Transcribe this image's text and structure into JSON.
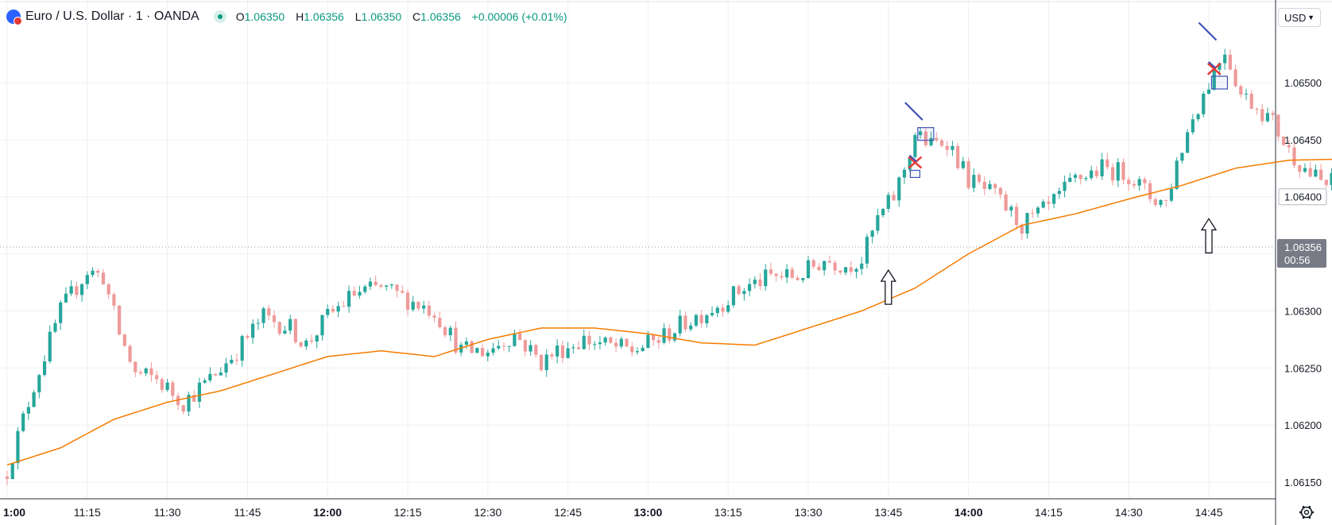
{
  "header": {
    "symbol": "Euro / U.S. Dollar · 1 · OANDA",
    "o_label": "O",
    "o_value": "1.06350",
    "h_label": "H",
    "h_value": "1.06356",
    "l_label": "L",
    "l_value": "1.06350",
    "c_label": "C",
    "c_value": "1.06356",
    "change": "+0.00006 (+0.01%)"
  },
  "currency_button": {
    "label": "USD",
    "icon": "chevron-down-icon"
  },
  "settings_icon": "gear-icon",
  "price_label": {
    "price": "1.06356",
    "countdown": "00:56"
  },
  "highlighted_price": "1.06400",
  "colors": {
    "up": "#26a69a",
    "down": "#ef9a9a",
    "ma": "#f57c00",
    "annotation": "#3f51b5",
    "cross": "#e53935"
  },
  "chart_data": {
    "type": "candlestick",
    "xlabel": "",
    "ylabel": "",
    "x_ticks": [
      "1:00",
      "11:15",
      "11:30",
      "11:45",
      "12:00",
      "12:15",
      "12:30",
      "12:45",
      "13:00",
      "13:15",
      "13:30",
      "13:45",
      "14:00",
      "14:15",
      "14:30",
      "14:45"
    ],
    "x_ticks_bold": [
      "12:00",
      "13:00",
      "14:00"
    ],
    "y_ticks": [
      "1.06150",
      "1.06200",
      "1.06250",
      "1.06300",
      "1.06350",
      "1.06400",
      "1.06450",
      "1.06500"
    ],
    "ylim": [
      1.0613,
      1.0654
    ],
    "close_series": [
      {
        "t": 0,
        "c": 1.0616
      },
      {
        "t": 5,
        "c": 1.06235
      },
      {
        "t": 10,
        "c": 1.063
      },
      {
        "t": 15,
        "c": 1.06335
      },
      {
        "t": 18,
        "c": 1.0633
      },
      {
        "t": 21,
        "c": 1.0628
      },
      {
        "t": 24,
        "c": 1.06245
      },
      {
        "t": 28,
        "c": 1.0624
      },
      {
        "t": 33,
        "c": 1.0622
      },
      {
        "t": 38,
        "c": 1.0624
      },
      {
        "t": 43,
        "c": 1.06265
      },
      {
        "t": 48,
        "c": 1.06295
      },
      {
        "t": 53,
        "c": 1.06285
      },
      {
        "t": 56,
        "c": 1.0627
      },
      {
        "t": 60,
        "c": 1.06295
      },
      {
        "t": 65,
        "c": 1.06315
      },
      {
        "t": 70,
        "c": 1.0632
      },
      {
        "t": 75,
        "c": 1.0631
      },
      {
        "t": 80,
        "c": 1.063
      },
      {
        "t": 85,
        "c": 1.06265
      },
      {
        "t": 90,
        "c": 1.06265
      },
      {
        "t": 95,
        "c": 1.0628
      },
      {
        "t": 100,
        "c": 1.06255
      },
      {
        "t": 103,
        "c": 1.06265
      },
      {
        "t": 108,
        "c": 1.06275
      },
      {
        "t": 112,
        "c": 1.0627
      },
      {
        "t": 117,
        "c": 1.06265
      },
      {
        "t": 122,
        "c": 1.06275
      },
      {
        "t": 127,
        "c": 1.0629
      },
      {
        "t": 133,
        "c": 1.06305
      },
      {
        "t": 138,
        "c": 1.0632
      },
      {
        "t": 143,
        "c": 1.0633
      },
      {
        "t": 148,
        "c": 1.0633
      },
      {
        "t": 153,
        "c": 1.06345
      },
      {
        "t": 157,
        "c": 1.0634
      },
      {
        "t": 160,
        "c": 1.06345
      },
      {
        "t": 163,
        "c": 1.0638
      },
      {
        "t": 166,
        "c": 1.064
      },
      {
        "t": 168,
        "c": 1.06425
      },
      {
        "t": 170,
        "c": 1.06455
      },
      {
        "t": 173,
        "c": 1.06445
      },
      {
        "t": 176,
        "c": 1.0645
      },
      {
        "t": 180,
        "c": 1.06415
      },
      {
        "t": 185,
        "c": 1.064
      },
      {
        "t": 190,
        "c": 1.06375
      },
      {
        "t": 195,
        "c": 1.0639
      },
      {
        "t": 200,
        "c": 1.06415
      },
      {
        "t": 205,
        "c": 1.06425
      },
      {
        "t": 210,
        "c": 1.0642
      },
      {
        "t": 214,
        "c": 1.064
      },
      {
        "t": 217,
        "c": 1.06395
      },
      {
        "t": 219,
        "c": 1.0643
      },
      {
        "t": 222,
        "c": 1.0647
      },
      {
        "t": 225,
        "c": 1.065
      },
      {
        "t": 228,
        "c": 1.0653
      },
      {
        "t": 231,
        "c": 1.0649
      },
      {
        "t": 234,
        "c": 1.0648
      },
      {
        "t": 237,
        "c": 1.06465
      },
      {
        "t": 240,
        "c": 1.0644
      },
      {
        "t": 244,
        "c": 1.0642
      },
      {
        "t": 247,
        "c": 1.0641
      },
      {
        "t": 250,
        "c": 1.0642
      },
      {
        "t": 252,
        "c": 1.064
      },
      {
        "t": 254,
        "c": 1.06356
      }
    ],
    "ma_series": [
      {
        "t": 0,
        "v": 1.06165
      },
      {
        "t": 10,
        "v": 1.0618
      },
      {
        "t": 20,
        "v": 1.06205
      },
      {
        "t": 30,
        "v": 1.0622
      },
      {
        "t": 40,
        "v": 1.0623
      },
      {
        "t": 50,
        "v": 1.06245
      },
      {
        "t": 60,
        "v": 1.0626
      },
      {
        "t": 70,
        "v": 1.06265
      },
      {
        "t": 80,
        "v": 1.0626
      },
      {
        "t": 90,
        "v": 1.06275
      },
      {
        "t": 100,
        "v": 1.06285
      },
      {
        "t": 110,
        "v": 1.06285
      },
      {
        "t": 120,
        "v": 1.0628
      },
      {
        "t": 130,
        "v": 1.06272
      },
      {
        "t": 140,
        "v": 1.0627
      },
      {
        "t": 150,
        "v": 1.06285
      },
      {
        "t": 160,
        "v": 1.063
      },
      {
        "t": 170,
        "v": 1.0632
      },
      {
        "t": 180,
        "v": 1.0635
      },
      {
        "t": 190,
        "v": 1.06375
      },
      {
        "t": 200,
        "v": 1.06385
      },
      {
        "t": 210,
        "v": 1.06398
      },
      {
        "t": 220,
        "v": 1.0641
      },
      {
        "t": 230,
        "v": 1.06425
      },
      {
        "t": 240,
        "v": 1.06432
      },
      {
        "t": 250,
        "v": 1.06433
      },
      {
        "t": 254,
        "v": 1.06433
      }
    ],
    "annotations": [
      {
        "type": "up-arrow",
        "t": 165,
        "price": 1.06335
      },
      {
        "type": "up-arrow",
        "t": 225,
        "price": 1.0638
      },
      {
        "type": "cross",
        "t": 170,
        "price": 1.0643
      },
      {
        "type": "cross",
        "t": 226,
        "price": 1.06512
      },
      {
        "type": "box",
        "t": 170,
        "price": 1.0642
      },
      {
        "type": "box",
        "t": 172,
        "price": 1.06455
      },
      {
        "type": "box",
        "t": 227,
        "price": 1.065
      },
      {
        "type": "diagonal",
        "t": 172,
        "price": 1.0647
      },
      {
        "type": "diagonal",
        "t": 227,
        "price": 1.0654
      }
    ]
  }
}
